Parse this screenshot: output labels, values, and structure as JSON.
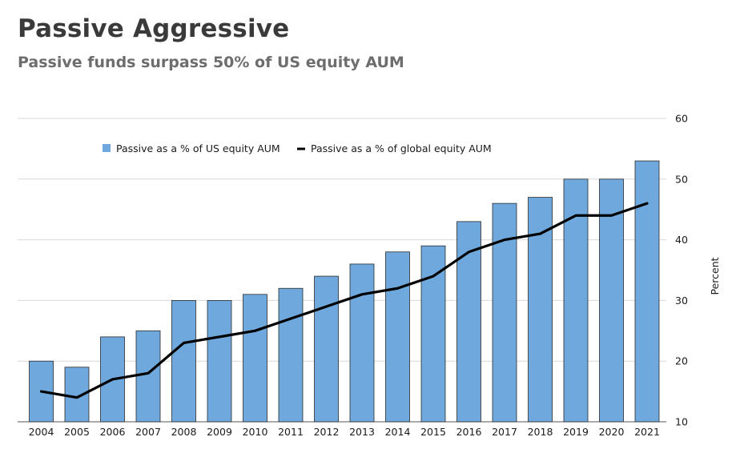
{
  "header": {
    "title": "Passive Aggressive",
    "subtitle": "Passive funds surpass 50% of US equity AUM"
  },
  "chart_data": {
    "type": "bar",
    "title": "Passive Aggressive",
    "subtitle": "Passive funds surpass 50% of US equity AUM",
    "xlabel": "",
    "ylabel": "Percent",
    "ylim": [
      10,
      60
    ],
    "yticks": [
      10,
      20,
      30,
      40,
      50,
      60
    ],
    "y_axis_side": "right",
    "grid": true,
    "legend_position": "top-center",
    "categories": [
      "2004",
      "2005",
      "2006",
      "2007",
      "2008",
      "2009",
      "2010",
      "2011",
      "2012",
      "2013",
      "2014",
      "2015",
      "2016",
      "2017",
      "2018",
      "2019",
      "2020",
      "2021"
    ],
    "series": [
      {
        "name": "Passive as a % of US equity AUM",
        "type": "bar",
        "color": "#6fa8dc",
        "values": [
          20,
          19,
          24,
          25,
          30,
          30,
          31,
          32,
          34,
          36,
          38,
          39,
          43,
          46,
          47,
          50,
          50,
          53
        ]
      },
      {
        "name": "Passive as a % of global equity AUM",
        "type": "line",
        "color": "#000000",
        "values": [
          15,
          14,
          17,
          18,
          23,
          24,
          25,
          27,
          29,
          31,
          32,
          34,
          38,
          40,
          41,
          44,
          44,
          46
        ]
      }
    ]
  }
}
